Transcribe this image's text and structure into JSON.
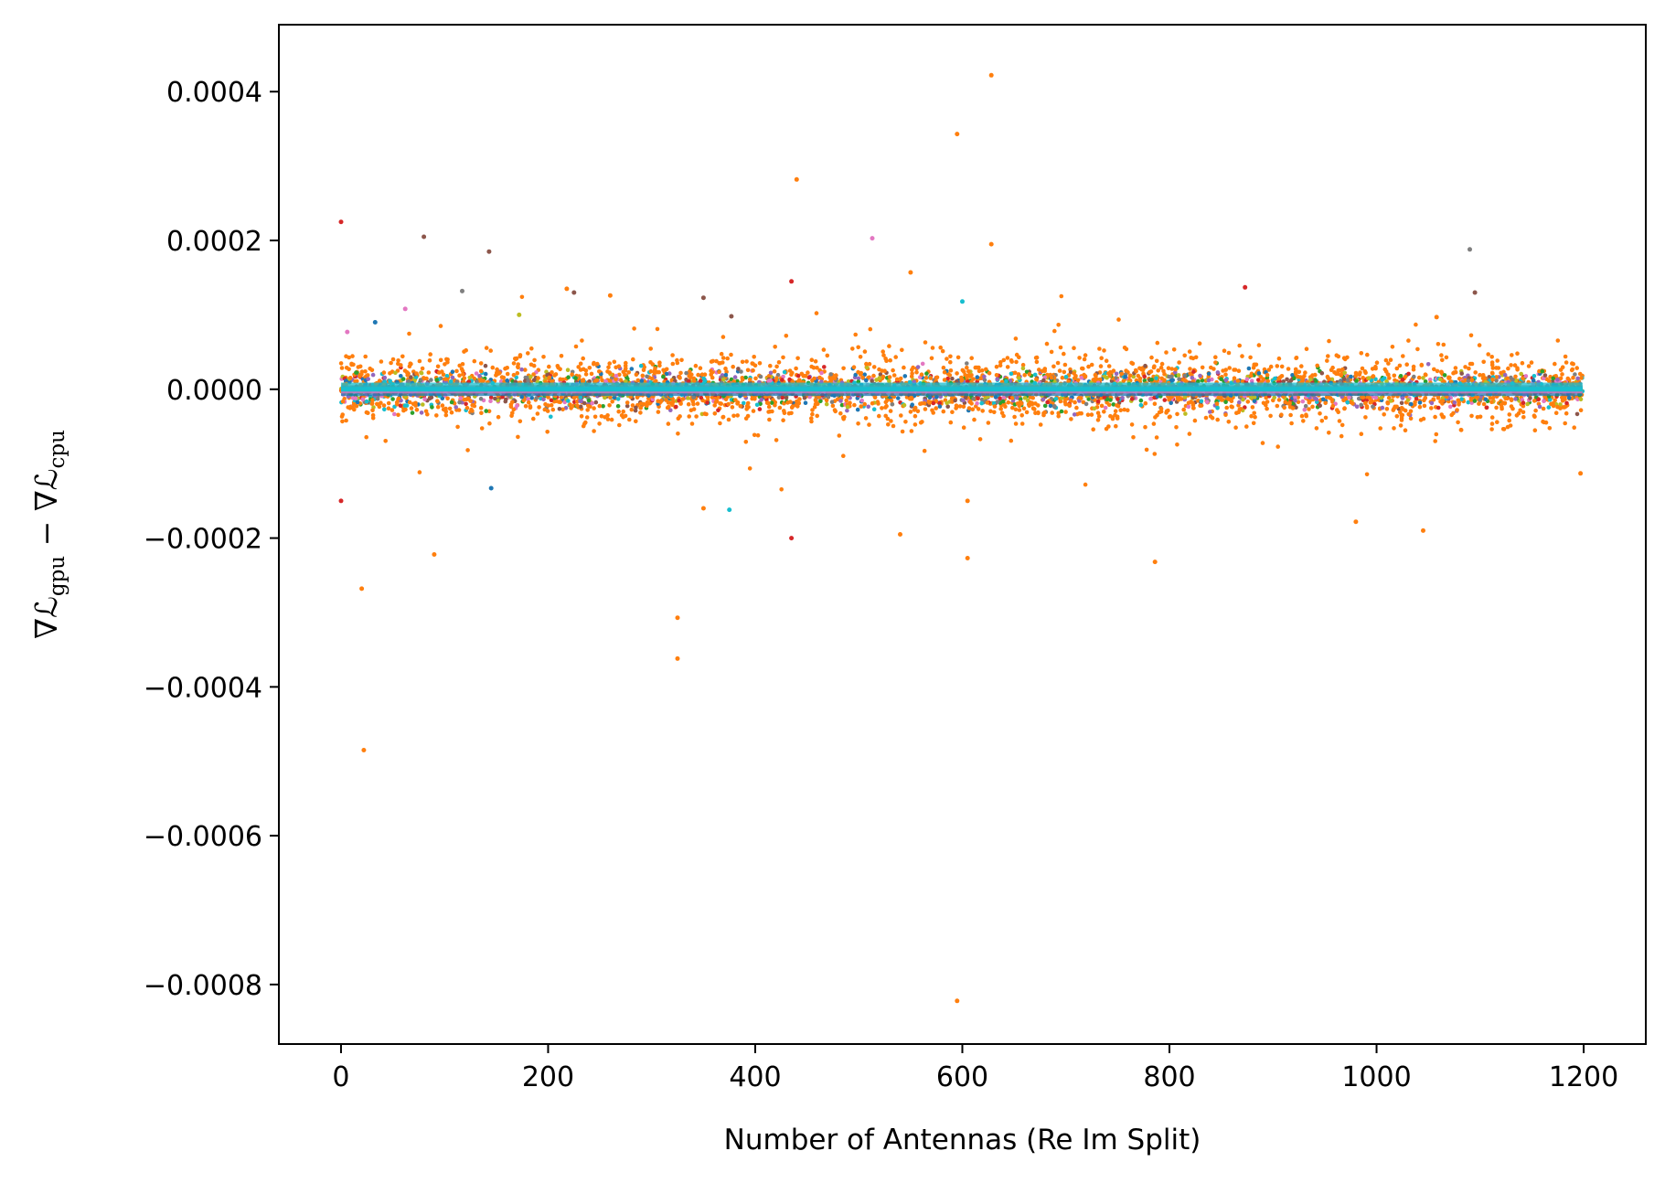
{
  "chart_data": {
    "type": "scatter",
    "xlabel": "Number of Antennas (Re Im Split)",
    "ylabel": "∇ℒgpu − ∇ℒcpu",
    "ylabel_parts": {
      "nabla1": "∇ℒ",
      "sub1": "gpu",
      "minus": " − ∇ℒ",
      "sub2": "cpu"
    },
    "xlim": [
      -60,
      1260
    ],
    "ylim": [
      -0.00088,
      0.00049
    ],
    "x_ticks": [
      0,
      200,
      400,
      600,
      800,
      1000,
      1200
    ],
    "x_tick_labels": [
      "0",
      "200",
      "400",
      "600",
      "800",
      "1000",
      "1200"
    ],
    "y_ticks": [
      0.0004,
      0.0002,
      0.0,
      -0.0002,
      -0.0004,
      -0.0006,
      -0.0008
    ],
    "y_tick_labels": [
      "0.0004",
      "0.0002",
      "0.0000",
      "−0.0002",
      "−0.0004",
      "−0.0006",
      "−0.0008"
    ],
    "grid": false,
    "legend": "none",
    "x_range_of_points": [
      0,
      1199
    ],
    "band_half_width_typical": 3e-05,
    "series_colors": [
      "#1f77b4",
      "#ff7f0e",
      "#2ca02c",
      "#d62728",
      "#9467bd",
      "#8c564b",
      "#e377c2",
      "#7f7f7f",
      "#bcbd22",
      "#17becf"
    ],
    "dominant_spread_series": 1,
    "outliers": [
      {
        "x": 0,
        "y": 0.000225,
        "color": "#d62728"
      },
      {
        "x": 0,
        "y": -0.00015,
        "color": "#d62728"
      },
      {
        "x": 6,
        "y": 7.7e-05,
        "color": "#e377c2"
      },
      {
        "x": 20,
        "y": -0.000268,
        "color": "#ff7f0e"
      },
      {
        "x": 22,
        "y": -0.000485,
        "color": "#ff7f0e"
      },
      {
        "x": 33,
        "y": 9e-05,
        "color": "#1f77b4"
      },
      {
        "x": 62,
        "y": 0.000108,
        "color": "#e377c2"
      },
      {
        "x": 80,
        "y": 0.000205,
        "color": "#8c564b"
      },
      {
        "x": 90,
        "y": -0.000222,
        "color": "#ff7f0e"
      },
      {
        "x": 117,
        "y": 0.000132,
        "color": "#7f7f7f"
      },
      {
        "x": 143,
        "y": 0.000185,
        "color": "#8c564b"
      },
      {
        "x": 145,
        "y": -0.000133,
        "color": "#1f77b4"
      },
      {
        "x": 172,
        "y": 0.0001,
        "color": "#bcbd22"
      },
      {
        "x": 218,
        "y": 0.000135,
        "color": "#ff7f0e"
      },
      {
        "x": 225,
        "y": 0.00013,
        "color": "#8c564b"
      },
      {
        "x": 260,
        "y": 0.000126,
        "color": "#ff7f0e"
      },
      {
        "x": 325,
        "y": -0.000307,
        "color": "#ff7f0e"
      },
      {
        "x": 325,
        "y": -0.000362,
        "color": "#ff7f0e"
      },
      {
        "x": 350,
        "y": 0.000123,
        "color": "#8c564b"
      },
      {
        "x": 350,
        "y": -0.00016,
        "color": "#ff7f0e"
      },
      {
        "x": 375,
        "y": -0.000162,
        "color": "#17becf"
      },
      {
        "x": 377,
        "y": 9.8e-05,
        "color": "#8c564b"
      },
      {
        "x": 435,
        "y": 0.000145,
        "color": "#d62728"
      },
      {
        "x": 435,
        "y": -0.0002,
        "color": "#d62728"
      },
      {
        "x": 440,
        "y": 0.000282,
        "color": "#ff7f0e"
      },
      {
        "x": 513,
        "y": 0.000203,
        "color": "#e377c2"
      },
      {
        "x": 540,
        "y": -0.000195,
        "color": "#ff7f0e"
      },
      {
        "x": 550,
        "y": 0.000157,
        "color": "#ff7f0e"
      },
      {
        "x": 595,
        "y": 0.000343,
        "color": "#ff7f0e"
      },
      {
        "x": 595,
        "y": -0.000822,
        "color": "#ff7f0e"
      },
      {
        "x": 600,
        "y": 0.000118,
        "color": "#17becf"
      },
      {
        "x": 605,
        "y": -0.00015,
        "color": "#ff7f0e"
      },
      {
        "x": 605,
        "y": -0.000227,
        "color": "#ff7f0e"
      },
      {
        "x": 628,
        "y": 0.000422,
        "color": "#ff7f0e"
      },
      {
        "x": 628,
        "y": 0.000195,
        "color": "#ff7f0e"
      },
      {
        "x": 786,
        "y": -0.000232,
        "color": "#ff7f0e"
      },
      {
        "x": 873,
        "y": 0.000137,
        "color": "#d62728"
      },
      {
        "x": 980,
        "y": -0.000178,
        "color": "#ff7f0e"
      },
      {
        "x": 1045,
        "y": -0.00019,
        "color": "#ff7f0e"
      },
      {
        "x": 1058,
        "y": 9.7e-05,
        "color": "#ff7f0e"
      },
      {
        "x": 1090,
        "y": 0.000188,
        "color": "#7f7f7f"
      },
      {
        "x": 1095,
        "y": 0.00013,
        "color": "#8c564b"
      },
      {
        "x": 1197,
        "y": -0.000113,
        "color": "#ff7f0e"
      }
    ]
  }
}
